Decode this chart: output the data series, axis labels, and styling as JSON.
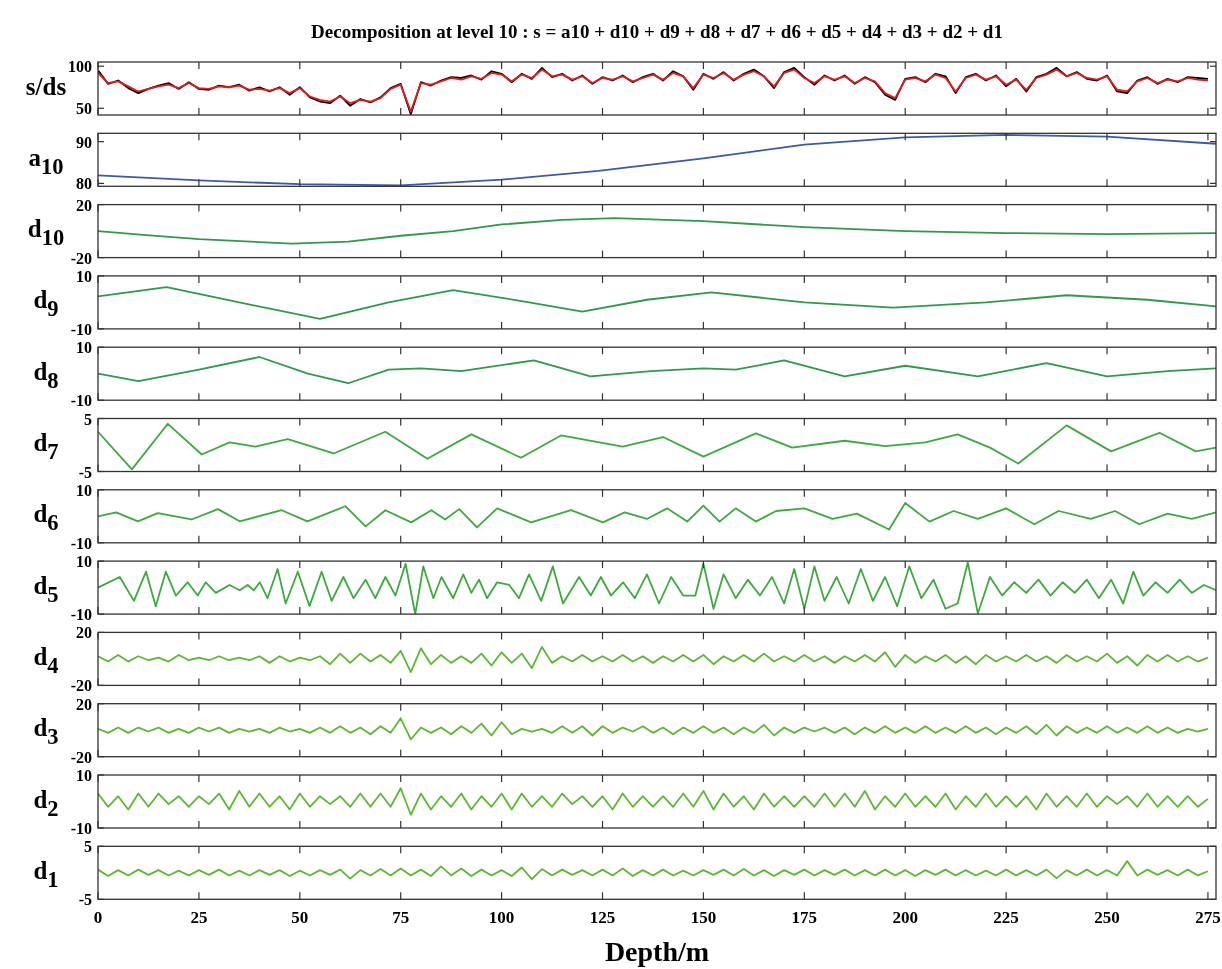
{
  "chart_data": [
    {
      "type": "line",
      "title": "Decomposition at level 10 : s = a10 + d10 + d9 + d8 + d7 + d6 + d5 + d4 + d3 + d2 + d1",
      "ylabel": "s/ds",
      "xlim": [
        0,
        277
      ],
      "xticks": [
        0,
        25,
        50,
        75,
        100,
        125,
        150,
        175,
        200,
        225,
        250,
        275
      ],
      "ylim": [
        42,
        105
      ],
      "yticks": [
        50,
        100
      ],
      "tick_labels": "y",
      "x": [
        0,
        2.5,
        5,
        7.5,
        10,
        12.5,
        15,
        17.5,
        20,
        22.5,
        25,
        27.5,
        30,
        32.5,
        35,
        37.5,
        40,
        42.5,
        45,
        47.5,
        50,
        52.5,
        55,
        57.5,
        60,
        62.5,
        65,
        67.5,
        70,
        72.5,
        75,
        77.5,
        80,
        82.5,
        85,
        87.5,
        90,
        92.5,
        95,
        97.5,
        100,
        102.5,
        105,
        107.5,
        110,
        112.5,
        115,
        117.5,
        120,
        122.5,
        125,
        127.5,
        130,
        132.5,
        135,
        137.5,
        140,
        142.5,
        145,
        147.5,
        150,
        152.5,
        155,
        157.5,
        160,
        162.5,
        165,
        167.5,
        170,
        172.5,
        175,
        177.5,
        180,
        182.5,
        185,
        187.5,
        190,
        192.5,
        195,
        197.5,
        200,
        202.5,
        205,
        207.5,
        210,
        212.5,
        215,
        217.5,
        220,
        222.5,
        225,
        227.5,
        230,
        232.5,
        235,
        237.5,
        240,
        242.5,
        245,
        247.5,
        250,
        252.5,
        255,
        257.5,
        260,
        262.5,
        265,
        267.5,
        270,
        272.5,
        275
      ],
      "series": [
        {
          "color": "#000000",
          "values": [
            95,
            79,
            83,
            74,
            68,
            73,
            77,
            80,
            73,
            81,
            73,
            72,
            77,
            75,
            78,
            71,
            75,
            70,
            75,
            66,
            75,
            63,
            58,
            56,
            65,
            53,
            61,
            57,
            63,
            74,
            79,
            43,
            81,
            77,
            83,
            87,
            86,
            89,
            84,
            94,
            91,
            81,
            91,
            85,
            98,
            87,
            91,
            83,
            89,
            79,
            87,
            83,
            89,
            81,
            87,
            91,
            83,
            94,
            88,
            72,
            91,
            85,
            93,
            83,
            91,
            96,
            88,
            74,
            93,
            98,
            87,
            78,
            89,
            83,
            89,
            79,
            87,
            81,
            66,
            60,
            85,
            87,
            81,
            91,
            88,
            68,
            87,
            91,
            83,
            89,
            76,
            85,
            70,
            87,
            91,
            98,
            88,
            93,
            85,
            83,
            89,
            70,
            68,
            83,
            87,
            79,
            85,
            81,
            87,
            86,
            85
          ]
        },
        {
          "color": "#e41a1c",
          "values": [
            92,
            80,
            82,
            76,
            70,
            73,
            76,
            78,
            74,
            80,
            74,
            73,
            76,
            75,
            77,
            72,
            73,
            71,
            74,
            68,
            74,
            64,
            60,
            58,
            64,
            56,
            60,
            58,
            62,
            73,
            78,
            46,
            80,
            78,
            82,
            86,
            84,
            88,
            85,
            92,
            90,
            82,
            90,
            86,
            96,
            88,
            90,
            84,
            88,
            80,
            86,
            84,
            88,
            82,
            86,
            90,
            84,
            92,
            88,
            74,
            90,
            86,
            92,
            84,
            90,
            94,
            88,
            76,
            92,
            96,
            86,
            80,
            88,
            84,
            88,
            80,
            86,
            82,
            68,
            62,
            84,
            86,
            82,
            90,
            86,
            70,
            86,
            90,
            84,
            88,
            78,
            84,
            72,
            86,
            90,
            96,
            88,
            92,
            86,
            84,
            88,
            72,
            70,
            82,
            86,
            80,
            84,
            82,
            86,
            84,
            83
          ]
        }
      ]
    },
    {
      "type": "line",
      "ylabel": "a$_{10}$",
      "xlim": [
        0,
        277
      ],
      "xticks": [
        0,
        25,
        50,
        75,
        100,
        125,
        150,
        175,
        200,
        225,
        250,
        275
      ],
      "ylim": [
        79.3,
        92
      ],
      "yticks": [
        80,
        90
      ],
      "tick_labels": "y",
      "x": [
        0,
        25,
        50,
        75,
        100,
        124,
        150,
        175,
        200,
        225,
        250,
        277
      ],
      "series": [
        {
          "color": "#3a5ba8",
          "values": [
            81.9,
            80.7,
            79.8,
            79.5,
            80.9,
            83,
            86,
            89.3,
            91,
            91.6,
            91.2,
            89.5
          ]
        }
      ]
    },
    {
      "type": "line",
      "ylabel": "d$_{10}$",
      "xlim": [
        0,
        277
      ],
      "xticks": [
        0,
        25,
        50,
        75,
        100,
        125,
        150,
        175,
        200,
        225,
        250,
        275
      ],
      "ylim": [
        -20,
        20
      ],
      "yticks": [
        -20,
        20
      ],
      "tick_labels": "y",
      "x": [
        0,
        12,
        25,
        48,
        62,
        75,
        88,
        100,
        115,
        128,
        150,
        175,
        200,
        225,
        250,
        277
      ],
      "series": [
        {
          "color": "#2e9a4a",
          "values": [
            0,
            -3,
            -6,
            -9.5,
            -8,
            -3.5,
            0,
            5,
            8.5,
            9.8,
            7.5,
            3,
            0,
            -1.5,
            -2.3,
            -1.5
          ]
        }
      ]
    },
    {
      "type": "line",
      "ylabel": "d$_{9}$",
      "xlim": [
        0,
        277
      ],
      "xticks": [
        0,
        25,
        50,
        75,
        100,
        125,
        150,
        175,
        200,
        225,
        250,
        275
      ],
      "ylim": [
        -10,
        10
      ],
      "yticks": [
        -10,
        10
      ],
      "tick_labels": "y",
      "x": [
        0,
        17,
        35,
        55,
        72,
        88,
        105,
        120,
        136,
        152,
        175,
        197,
        220,
        240,
        260,
        277
      ],
      "series": [
        {
          "color": "#2e9a4a",
          "values": [
            2.3,
            5.8,
            0,
            -6.2,
            0,
            4.6,
            0.5,
            -3.5,
            1,
            3.8,
            0,
            -2,
            0,
            2.7,
            1,
            -1.5
          ]
        }
      ]
    },
    {
      "type": "line",
      "ylabel": "d$_{8}$",
      "xlim": [
        0,
        277
      ],
      "xticks": [
        0,
        25,
        50,
        75,
        100,
        125,
        150,
        175,
        200,
        225,
        250,
        275
      ],
      "ylim": [
        -10,
        10
      ],
      "yticks": [
        -10,
        10
      ],
      "tick_labels": "y",
      "x": [
        0,
        10,
        25,
        40,
        52,
        62,
        72,
        80,
        90,
        108,
        122,
        137,
        150,
        158,
        170,
        185,
        200,
        218,
        235,
        250,
        265,
        277
      ],
      "series": [
        {
          "color": "#2e9a4a",
          "values": [
            0,
            -2.8,
            1.5,
            6.3,
            0,
            -3.6,
            1.5,
            2,
            1,
            5,
            -1,
            1,
            2,
            1.5,
            5,
            -1,
            3,
            -1,
            4,
            -1,
            1,
            2
          ]
        }
      ]
    },
    {
      "type": "line",
      "ylabel": "d$_{7}$",
      "xlim": [
        0,
        277
      ],
      "xticks": [
        0,
        25,
        50,
        75,
        100,
        125,
        150,
        175,
        200,
        225,
        250,
        275
      ],
      "ylim": [
        -5,
        5
      ],
      "yticks": [
        -5,
        5
      ],
      "tick_labels": "y",
      "x": [
        0,
        8.4,
        17.3,
        25.7,
        32.6,
        39,
        47,
        58.4,
        71.2,
        81.6,
        92.5,
        104.8,
        114.7,
        130,
        140,
        150,
        163,
        172,
        185,
        195,
        205,
        213,
        221,
        228,
        240,
        251,
        263,
        272,
        277
      ],
      "series": [
        {
          "color": "#3caa3c",
          "values": [
            2.5,
            -4.6,
            4,
            -1.8,
            0.5,
            -0.3,
            1.1,
            -1.6,
            2.5,
            -2.6,
            2,
            -2.4,
            1.8,
            -0.3,
            1.5,
            -2.2,
            2.2,
            -0.5,
            0.8,
            -0.2,
            0.5,
            2,
            -0.5,
            -3.5,
            3.7,
            -1.2,
            2.3,
            -1.2,
            -0.5
          ]
        }
      ]
    },
    {
      "type": "line",
      "ylabel": "d$_{6}$",
      "xlim": [
        0,
        277
      ],
      "xticks": [
        0,
        25,
        50,
        75,
        100,
        125,
        150,
        175,
        200,
        225,
        250,
        275
      ],
      "ylim": [
        -10,
        10
      ],
      "yticks": [
        -10,
        10
      ],
      "tick_labels": "y",
      "x": [
        0,
        4.5,
        9.9,
        14.8,
        23.2,
        29.7,
        35.1,
        45.5,
        51.9,
        61.3,
        66.3,
        71.2,
        77.6,
        82.6,
        86,
        89.5,
        93.9,
        98.9,
        107.3,
        117.2,
        125.1,
        130.5,
        136,
        141,
        146,
        150,
        154,
        158,
        163,
        168,
        175,
        182,
        188,
        196,
        200,
        206,
        212,
        218,
        225,
        232,
        238,
        246,
        252,
        258,
        265,
        271,
        277
      ],
      "series": [
        {
          "color": "#3caa3c",
          "values": [
            0,
            1.5,
            -1.9,
            1.2,
            -1.2,
            2.7,
            -1.9,
            2.3,
            -1.9,
            3.8,
            -3.8,
            2.3,
            -2.3,
            2.3,
            -1.2,
            2.7,
            -4.2,
            3,
            -2.3,
            2.3,
            -2.3,
            1.5,
            -1,
            3,
            -2,
            4,
            -2,
            3,
            -2,
            2,
            3,
            -1,
            1,
            -5,
            5,
            -2,
            2,
            -1,
            3,
            -3,
            2,
            -1,
            2,
            -3,
            1,
            -1,
            1.5
          ]
        }
      ]
    },
    {
      "type": "line",
      "ylabel": "d$_{5}$",
      "xlim": [
        0,
        277
      ],
      "xticks": [
        0,
        25,
        50,
        75,
        100,
        125,
        150,
        175,
        200,
        225,
        250,
        275
      ],
      "ylim": [
        -10,
        10
      ],
      "yticks": [
        -10,
        10
      ],
      "tick_labels": "y",
      "x": [
        0,
        5.4,
        8.9,
        11.9,
        14.3,
        16.8,
        19.3,
        22.2,
        24.7,
        26.7,
        29.2,
        32.6,
        35.1,
        37.1,
        38.6,
        40.1,
        42,
        44.5,
        46.5,
        49.5,
        52.4,
        55.4,
        57.9,
        60.8,
        63.3,
        66.3,
        68.7,
        71.2,
        73.7,
        76.2,
        78.6,
        80.6,
        83.1,
        85.1,
        88,
        90.5,
        92.5,
        94.4,
        96.4,
        98.9,
        101.9,
        104.3,
        106.8,
        109.8,
        112.7,
        115.2,
        119.2,
        122.1,
        124.6,
        127.1,
        130.1,
        133,
        136,
        139,
        142,
        145,
        148,
        150,
        152.5,
        155,
        158,
        161,
        164,
        167,
        170,
        172.5,
        175,
        177.5,
        180,
        183,
        186,
        189,
        192,
        195,
        198,
        201,
        204,
        207,
        210,
        213,
        215.5,
        218,
        221,
        224,
        227,
        230,
        233,
        236,
        239,
        242,
        245,
        248,
        251,
        254,
        256.5,
        259,
        262,
        265,
        268,
        271,
        274,
        277
      ],
      "series": [
        {
          "color": "#3caa3c",
          "values": [
            0,
            4,
            -5,
            6,
            -7,
            6,
            -3,
            2,
            -3,
            2,
            -2,
            1,
            -1,
            1,
            -1,
            2,
            -4,
            7,
            -6,
            6,
            -7,
            6,
            -5,
            4,
            -4,
            3,
            -4,
            4,
            -3,
            9,
            -10,
            8,
            -4,
            4,
            -4,
            5,
            -2,
            3,
            -4,
            2,
            1,
            -4,
            5,
            -5,
            8,
            -6,
            4,
            -3,
            4,
            -3,
            2,
            -4,
            5,
            -6,
            4,
            -3,
            -3,
            9,
            -8,
            5,
            -4,
            3,
            -3,
            4,
            -6,
            7,
            -8,
            8,
            -5,
            4,
            -6,
            7,
            -5,
            4,
            -7,
            8,
            -4,
            3,
            -8,
            -6,
            9.5,
            -9.8,
            4,
            -3,
            2,
            -2,
            3,
            -3,
            2,
            -2,
            3,
            -4,
            3,
            -6,
            6,
            -3,
            2,
            -2,
            3,
            -2,
            1,
            -1
          ]
        }
      ]
    },
    {
      "type": "line",
      "ylabel": "d$_{4}$",
      "xlim": [
        0,
        277
      ],
      "xticks": [
        0,
        25,
        50,
        75,
        100,
        125,
        150,
        175,
        200,
        225,
        250,
        275
      ],
      "ylim": [
        -20,
        20
      ],
      "yticks": [
        -20,
        20
      ],
      "tick_labels": "y",
      "x": [
        0,
        2.5,
        5,
        7.5,
        10,
        12.5,
        15,
        17.5,
        20,
        22.5,
        25,
        27.5,
        30,
        32.5,
        35,
        37.5,
        40,
        42.5,
        45,
        47.5,
        50,
        52.5,
        55,
        57.5,
        60,
        62.5,
        65,
        67.5,
        70,
        72.5,
        75,
        77.5,
        80,
        82.5,
        85,
        87.5,
        90,
        92.5,
        95,
        97.5,
        100,
        102.5,
        105,
        107.5,
        110,
        112.5,
        115,
        117.5,
        120,
        122.5,
        125,
        127.5,
        130,
        132.5,
        135,
        137.5,
        140,
        142.5,
        145,
        147.5,
        150,
        152.5,
        155,
        157.5,
        160,
        162.5,
        165,
        167.5,
        170,
        172.5,
        175,
        177.5,
        180,
        182.5,
        185,
        187.5,
        190,
        192.5,
        195,
        197.5,
        200,
        202.5,
        205,
        207.5,
        210,
        212.5,
        215,
        217.5,
        220,
        222.5,
        225,
        227.5,
        230,
        232.5,
        235,
        237.5,
        240,
        242.5,
        245,
        247.5,
        250,
        252.5,
        255,
        257.5,
        260,
        262.5,
        265,
        267.5,
        270,
        272.5,
        275
      ],
      "series": [
        {
          "color": "#5cb832",
          "values": [
            2,
            -2,
            3,
            -2,
            2,
            -1,
            1,
            -2,
            3,
            -1,
            1,
            -1,
            2,
            -1,
            1,
            -1,
            2,
            -3,
            2,
            -2,
            1,
            -1,
            2,
            -4,
            4,
            -3,
            4,
            -2,
            3,
            -3,
            6,
            -10,
            8,
            -4,
            3,
            -3,
            2,
            -3,
            4,
            -5,
            5,
            -3,
            4,
            -7,
            9,
            -3,
            2,
            -2,
            3,
            -2,
            2,
            -2,
            3,
            -2,
            2,
            -3,
            2,
            -2,
            3,
            -2,
            3,
            -4,
            2,
            -2,
            3,
            -2,
            4,
            -2,
            2,
            -2,
            3,
            -2,
            2,
            -3,
            2,
            -2,
            3,
            -2,
            5,
            -6,
            3,
            -3,
            2,
            -2,
            3,
            -3,
            2,
            -4,
            3,
            -2,
            2,
            -2,
            3,
            -2,
            2,
            -3,
            3,
            -2,
            2,
            -2,
            4,
            -3,
            2,
            -5,
            3,
            -2,
            3,
            -2,
            2,
            -2,
            1
          ]
        }
      ]
    },
    {
      "type": "line",
      "ylabel": "d$_{3}$",
      "xlim": [
        0,
        277
      ],
      "xticks": [
        0,
        25,
        50,
        75,
        100,
        125,
        150,
        175,
        200,
        225,
        250,
        275
      ],
      "ylim": [
        -20,
        20
      ],
      "yticks": [
        -20,
        20
      ],
      "tick_labels": "y",
      "x": [
        0,
        2.5,
        5,
        7.5,
        10,
        12.5,
        15,
        17.5,
        20,
        22.5,
        25,
        27.5,
        30,
        32.5,
        35,
        37.5,
        40,
        42.5,
        45,
        47.5,
        50,
        52.5,
        55,
        57.5,
        60,
        62.5,
        65,
        67.5,
        70,
        72.5,
        75,
        77.5,
        80,
        82.5,
        85,
        87.5,
        90,
        92.5,
        95,
        97.5,
        100,
        102.5,
        105,
        107.5,
        110,
        112.5,
        115,
        117.5,
        120,
        122.5,
        125,
        127.5,
        130,
        132.5,
        135,
        137.5,
        140,
        142.5,
        145,
        147.5,
        150,
        152.5,
        155,
        157.5,
        160,
        162.5,
        165,
        167.5,
        170,
        172.5,
        175,
        177.5,
        180,
        182.5,
        185,
        187.5,
        190,
        192.5,
        195,
        197.5,
        200,
        202.5,
        205,
        207.5,
        210,
        212.5,
        215,
        217.5,
        220,
        222.5,
        225,
        227.5,
        230,
        232.5,
        235,
        237.5,
        240,
        242.5,
        245,
        247.5,
        250,
        252.5,
        255,
        257.5,
        260,
        262.5,
        265,
        267.5,
        270,
        272.5,
        275
      ],
      "series": [
        {
          "color": "#5cb832",
          "values": [
            1,
            -2,
            2,
            -2,
            2,
            -1,
            2,
            -2,
            1,
            -2,
            2,
            -1,
            2,
            -2,
            1,
            -1,
            1,
            -2,
            2,
            -1,
            1,
            -2,
            2,
            -2,
            3,
            -2,
            2,
            -3,
            3,
            -2,
            9,
            -7,
            2,
            -2,
            2,
            -3,
            3,
            -2,
            5,
            -4,
            6,
            -3,
            1,
            -1,
            1,
            -2,
            3,
            -2,
            3,
            -4,
            3,
            -2,
            2,
            -1,
            3,
            -2,
            2,
            -3,
            2,
            -2,
            3,
            -2,
            2,
            -3,
            2,
            -2,
            4,
            -4,
            2,
            -2,
            2,
            -1,
            2,
            -2,
            2,
            -3,
            2,
            -2,
            3,
            -2,
            2,
            -2,
            3,
            -2,
            2,
            -2,
            3,
            -2,
            2,
            -3,
            2,
            -2,
            3,
            -3,
            4,
            -4,
            3,
            -2,
            2,
            -2,
            3,
            -2,
            2,
            -2,
            3,
            -2,
            2,
            -2,
            1,
            -1,
            1
          ]
        }
      ]
    },
    {
      "type": "line",
      "ylabel": "d$_{2}$",
      "xlim": [
        0,
        277
      ],
      "xticks": [
        0,
        25,
        50,
        75,
        100,
        125,
        150,
        175,
        200,
        225,
        250,
        275
      ],
      "ylim": [
        -10,
        10
      ],
      "yticks": [
        -10,
        10
      ],
      "tick_labels": "y",
      "x": [
        0,
        2.5,
        5,
        7.5,
        10,
        12.5,
        15,
        17.5,
        20,
        22.5,
        25,
        27.5,
        30,
        32.5,
        35,
        37.5,
        40,
        42.5,
        45,
        47.5,
        50,
        52.5,
        55,
        57.5,
        60,
        62.5,
        65,
        67.5,
        70,
        72.5,
        75,
        77.5,
        80,
        82.5,
        85,
        87.5,
        90,
        92.5,
        95,
        97.5,
        100,
        102.5,
        105,
        107.5,
        110,
        112.5,
        115,
        117.5,
        120,
        122.5,
        125,
        127.5,
        130,
        132.5,
        135,
        137.5,
        140,
        142.5,
        145,
        147.5,
        150,
        152.5,
        155,
        157.5,
        160,
        162.5,
        165,
        167.5,
        170,
        172.5,
        175,
        177.5,
        180,
        182.5,
        185,
        187.5,
        190,
        192.5,
        195,
        197.5,
        200,
        202.5,
        205,
        207.5,
        210,
        212.5,
        215,
        217.5,
        220,
        222.5,
        225,
        227.5,
        230,
        232.5,
        235,
        237.5,
        240,
        242.5,
        245,
        247.5,
        250,
        252.5,
        255,
        257.5,
        260,
        262.5,
        265,
        267.5,
        270,
        272.5,
        275
      ],
      "series": [
        {
          "color": "#5cb832",
          "values": [
            3,
            -2,
            2,
            -3,
            3,
            -2,
            3,
            -1,
            2,
            -2,
            2,
            -1,
            3,
            -3,
            4,
            -2,
            3,
            -2,
            2,
            -3,
            3,
            -2,
            2,
            -1,
            2,
            -2,
            3,
            -2,
            3,
            -2,
            5,
            -5,
            3,
            -3,
            2,
            -2,
            3,
            -3,
            2,
            -2,
            3,
            -3,
            3,
            -2,
            2,
            -2,
            3,
            -1,
            2,
            -2,
            2,
            -3,
            3,
            -2,
            2,
            -2,
            2,
            -2,
            3,
            -2,
            4,
            -3,
            3,
            -2,
            2,
            -3,
            3,
            -2,
            2,
            -2,
            2,
            -2,
            3,
            -2,
            3,
            -2,
            4,
            -3,
            2,
            -2,
            3,
            -2,
            2,
            -2,
            3,
            -3,
            2,
            -2,
            3,
            -2,
            2,
            -2,
            2,
            -3,
            3,
            -2,
            2,
            -2,
            3,
            -2,
            2,
            -1,
            2,
            -2,
            3,
            -2,
            2,
            -2,
            2,
            -2,
            1
          ]
        }
      ]
    },
    {
      "type": "line",
      "ylabel": "d$_{1}$",
      "xlabel": "Depth/m",
      "xlim": [
        0,
        277
      ],
      "xticks": [
        0,
        25,
        50,
        75,
        100,
        125,
        150,
        175,
        200,
        225,
        250,
        275
      ],
      "ylim": [
        -5,
        5
      ],
      "yticks": [
        -5,
        5
      ],
      "x": [
        0,
        2.5,
        5,
        7.5,
        10,
        12.5,
        15,
        17.5,
        20,
        22.5,
        25,
        27.5,
        30,
        32.5,
        35,
        37.5,
        40,
        42.5,
        45,
        47.5,
        50,
        52.5,
        55,
        57.5,
        60,
        62.5,
        65,
        67.5,
        70,
        72.5,
        75,
        77.5,
        80,
        82.5,
        85,
        87.5,
        90,
        92.5,
        95,
        97.5,
        100,
        102.5,
        105,
        107.5,
        110,
        112.5,
        115,
        117.5,
        120,
        122.5,
        125,
        127.5,
        130,
        132.5,
        135,
        137.5,
        140,
        142.5,
        145,
        147.5,
        150,
        152.5,
        155,
        157.5,
        160,
        162.5,
        165,
        167.5,
        170,
        172.5,
        175,
        177.5,
        180,
        182.5,
        185,
        187.5,
        190,
        192.5,
        195,
        197.5,
        200,
        202.5,
        205,
        207.5,
        210,
        212.5,
        215,
        217.5,
        220,
        222.5,
        225,
        227.5,
        230,
        232.5,
        235,
        237.5,
        240,
        242.5,
        245,
        247.5,
        250,
        252.5,
        255,
        257.5,
        260,
        262.5,
        265,
        267.5,
        270,
        272.5,
        275
      ],
      "series": [
        {
          "color": "#5cb832",
          "values": [
            0.6,
            -0.6,
            0.5,
            -0.5,
            0.6,
            -0.4,
            0.5,
            -0.5,
            0.4,
            -0.5,
            0.5,
            -0.4,
            0.6,
            -0.5,
            0.4,
            -0.5,
            0.5,
            -0.4,
            0.5,
            -0.6,
            0.4,
            -0.5,
            0.5,
            -0.4,
            0.6,
            -1.1,
            0.5,
            -0.5,
            0.7,
            -0.5,
            0.8,
            -0.5,
            0.6,
            -0.6,
            1.2,
            -0.5,
            0.8,
            -0.6,
            0.6,
            -0.5,
            0.5,
            -0.6,
            1,
            -1.2,
            0.7,
            -0.5,
            0.6,
            -0.4,
            0.5,
            -0.5,
            0.6,
            -0.5,
            0.8,
            -0.6,
            0.5,
            -0.5,
            0.6,
            -0.5,
            0.4,
            -0.5,
            0.5,
            -0.4,
            0.6,
            -0.5,
            0.7,
            -0.5,
            0.5,
            -0.6,
            0.5,
            -0.4,
            0.6,
            -0.5,
            0.5,
            -0.4,
            0.6,
            -0.5,
            0.5,
            -0.5,
            0.6,
            -0.5,
            0.5,
            -0.6,
            0.5,
            -0.4,
            0.6,
            -0.5,
            0.5,
            -0.5,
            0.4,
            -0.5,
            0.6,
            -0.5,
            0.5,
            -0.5,
            0.6,
            -1,
            0.5,
            -0.5,
            0.6,
            -0.5,
            0.5,
            -0.5,
            2.2,
            -0.5,
            0.6,
            -0.4,
            0.5,
            -0.5,
            0.6,
            -0.5,
            0.3
          ]
        }
      ]
    }
  ]
}
